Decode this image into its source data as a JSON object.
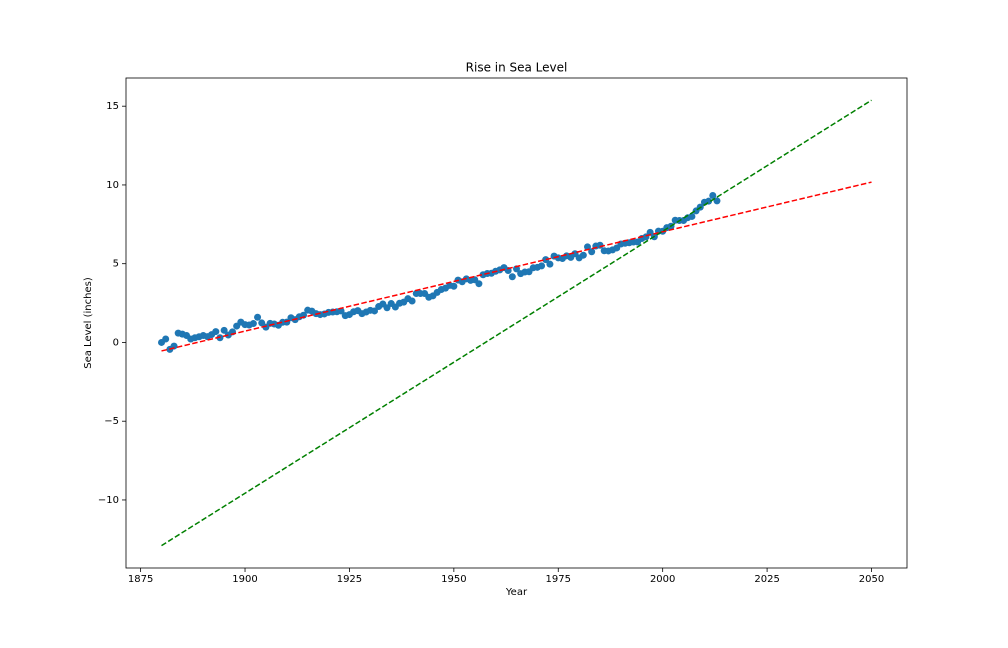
{
  "chart_data": {
    "type": "scatter",
    "title": "Rise in Sea Level",
    "x_label": "Year",
    "y_label": "Sea Level (inches)",
    "xlim": [
      1871.5,
      2058.5
    ],
    "ylim": [
      -14.32,
      16.79
    ],
    "xticks": [
      1875,
      1900,
      1925,
      1950,
      1975,
      2000,
      2025,
      2050
    ],
    "yticks": [
      {
        "value": -10,
        "label": "−10"
      },
      {
        "value": -5,
        "label": "−5"
      },
      0,
      5,
      10,
      15
    ],
    "grid": false,
    "series": [
      {
        "type": "scatter",
        "color": "#1f77b4",
        "x": [
          1880,
          1881,
          1882,
          1883,
          1884,
          1885,
          1886,
          1887,
          1888,
          1889,
          1890,
          1891,
          1892,
          1893,
          1894,
          1895,
          1896,
          1897,
          1898,
          1899,
          1900,
          1901,
          1902,
          1903,
          1904,
          1905,
          1906,
          1907,
          1908,
          1909,
          1910,
          1911,
          1912,
          1913,
          1914,
          1915,
          1916,
          1917,
          1918,
          1919,
          1920,
          1921,
          1922,
          1923,
          1924,
          1925,
          1926,
          1927,
          1928,
          1929,
          1930,
          1931,
          1932,
          1933,
          1934,
          1935,
          1936,
          1937,
          1938,
          1939,
          1940,
          1941,
          1942,
          1943,
          1944,
          1945,
          1946,
          1947,
          1948,
          1949,
          1950,
          1951,
          1952,
          1953,
          1954,
          1955,
          1956,
          1957,
          1958,
          1959,
          1960,
          1961,
          1962,
          1963,
          1964,
          1965,
          1966,
          1967,
          1968,
          1969,
          1970,
          1971,
          1972,
          1973,
          1974,
          1975,
          1976,
          1977,
          1978,
          1979,
          1980,
          1981,
          1982,
          1983,
          1984,
          1985,
          1986,
          1987,
          1988,
          1989,
          1990,
          1991,
          1992,
          1993,
          1994,
          1995,
          1996,
          1997,
          1998,
          1999,
          2000,
          2001,
          2002,
          2003,
          2004,
          2005,
          2006,
          2007,
          2008,
          2009,
          2010,
          2011,
          2012,
          2013
        ],
        "values": [
          0.0,
          0.22,
          -0.44,
          -0.23,
          0.59,
          0.53,
          0.44,
          0.22,
          0.3,
          0.36,
          0.44,
          0.37,
          0.5,
          0.69,
          0.3,
          0.77,
          0.47,
          0.67,
          1.04,
          1.29,
          1.13,
          1.11,
          1.2,
          1.6,
          1.24,
          0.97,
          1.21,
          1.17,
          1.09,
          1.28,
          1.29,
          1.57,
          1.45,
          1.63,
          1.73,
          2.05,
          1.99,
          1.83,
          1.77,
          1.81,
          1.91,
          1.93,
          1.95,
          2.0,
          1.7,
          1.77,
          1.95,
          2.02,
          1.83,
          1.93,
          2.04,
          2.0,
          2.28,
          2.44,
          2.2,
          2.47,
          2.25,
          2.49,
          2.56,
          2.78,
          2.63,
          3.11,
          3.11,
          3.11,
          2.87,
          2.96,
          3.18,
          3.36,
          3.45,
          3.62,
          3.57,
          3.96,
          3.85,
          4.04,
          3.94,
          3.98,
          3.73,
          4.3,
          4.38,
          4.39,
          4.52,
          4.61,
          4.75,
          4.57,
          4.17,
          4.67,
          4.37,
          4.47,
          4.49,
          4.74,
          4.77,
          4.86,
          5.26,
          4.97,
          5.48,
          5.37,
          5.33,
          5.5,
          5.4,
          5.63,
          5.37,
          5.54,
          6.07,
          5.76,
          6.12,
          6.17,
          5.82,
          5.81,
          5.88,
          6.0,
          6.25,
          6.3,
          6.33,
          6.38,
          6.38,
          6.6,
          6.7,
          6.99,
          6.71,
          7.07,
          7.06,
          7.29,
          7.38,
          7.76,
          7.74,
          7.74,
          7.92,
          8.0,
          8.35,
          8.59,
          8.9,
          8.97,
          9.33,
          8.99
        ]
      },
      {
        "type": "line",
        "style": "dashed",
        "color": "#ff0000",
        "x": [
          1880,
          2050
        ],
        "values": [
          -0.54,
          10.18
        ]
      },
      {
        "type": "line",
        "style": "dashed",
        "color": "#008000",
        "x": [
          1880,
          2050
        ],
        "values": [
          -12.9,
          15.38
        ]
      }
    ]
  }
}
